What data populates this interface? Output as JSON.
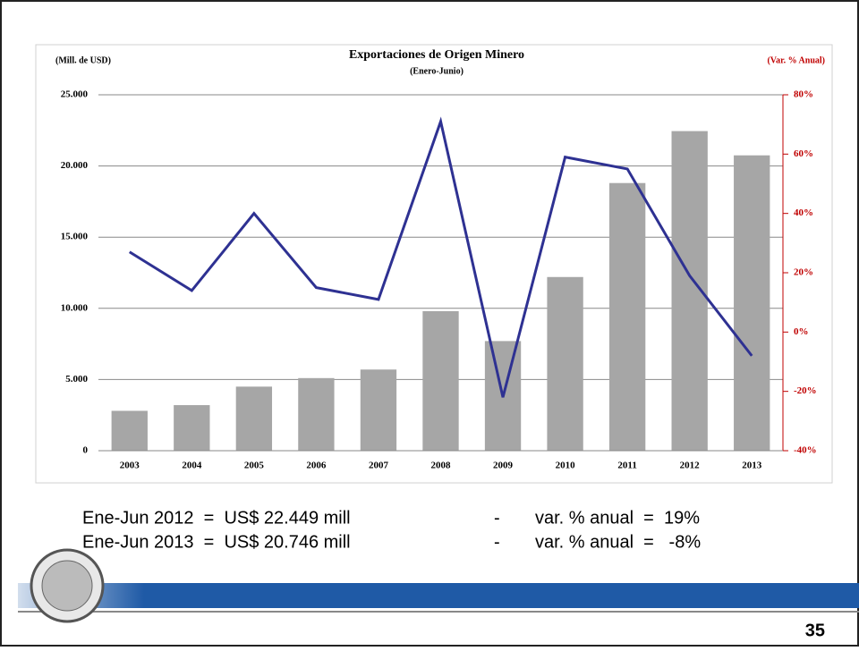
{
  "chart_data": {
    "type": "bar",
    "title": "Exportaciones de Origen Minero",
    "subtitle": "(Enero-Junio)",
    "y_label": "(Mill. de USD)",
    "y2_label": "(Var. % Anual)",
    "categories": [
      "2003",
      "2004",
      "2005",
      "2006",
      "2007",
      "2008",
      "2009",
      "2010",
      "2011",
      "2012",
      "2013"
    ],
    "series": [
      {
        "type": "bar",
        "color": "#a6a6a6",
        "values": [
          2800,
          3200,
          4500,
          5100,
          5700,
          9800,
          7700,
          12200,
          18800,
          22449,
          20746
        ]
      },
      {
        "type": "line",
        "axis": "y2",
        "color": "#2e3192",
        "values": [
          27,
          14,
          40,
          15,
          11,
          71,
          -22,
          59,
          55,
          19,
          -8
        ]
      }
    ],
    "ylim": [
      0,
      25000
    ],
    "yticks": [
      0,
      {
        "value": 5000,
        "label": "5.000"
      },
      {
        "value": 10000,
        "label": "10.000"
      },
      {
        "value": 15000,
        "label": "15.000"
      },
      {
        "value": 20000,
        "label": "20.000"
      },
      {
        "value": 25000,
        "label": "25.000"
      }
    ],
    "y2lim": [
      -40,
      80
    ],
    "y2ticks": [
      {
        "value": -40,
        "label": "-40%"
      },
      {
        "value": -20,
        "label": "-20%"
      },
      {
        "value": 0,
        "label": "0%"
      },
      {
        "value": 20,
        "label": "20%"
      },
      {
        "value": 40,
        "label": "40%"
      },
      {
        "value": 60,
        "label": "60%"
      },
      {
        "value": 80,
        "label": "80%"
      }
    ],
    "grid": true
  },
  "notes": [
    [
      "Ene-Jun 2012  =  US$ 22.449 mill",
      "-",
      "var. % anual  =  19%"
    ],
    [
      "Ene-Jun 2013  =  US$ 20.746 mill",
      "-",
      "var. % anual  =   -8%"
    ]
  ],
  "page_number": "35"
}
